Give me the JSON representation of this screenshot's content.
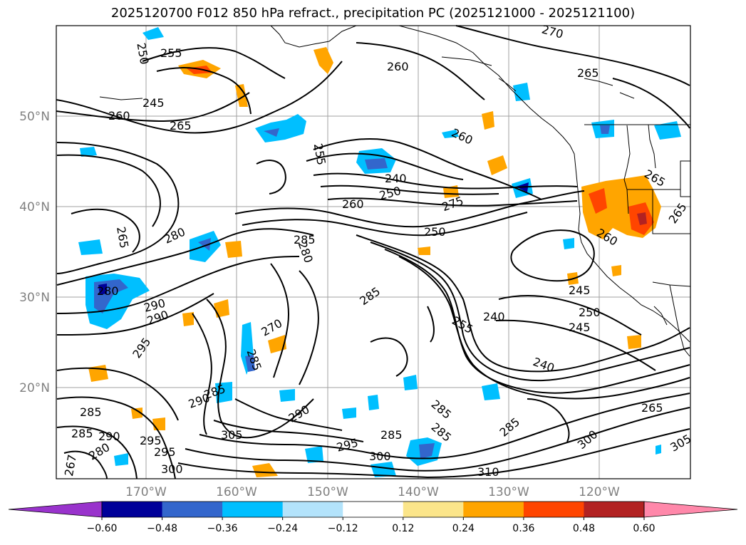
{
  "title": "2025120700 F012 850 hPa refract., precipitation PC (2025121000 - 2025121100)",
  "lat_labels": [
    "50°N",
    "40°N",
    "30°N",
    "20°N"
  ],
  "lon_labels": [
    "170°W",
    "160°W",
    "150°W",
    "140°W",
    "130°W",
    "120°W"
  ],
  "colorbar": {
    "colors": [
      "#9933cc",
      "#000099",
      "#3366cc",
      "#00bfff",
      "#b3e3fb",
      "#ffffff",
      "#fbe58a",
      "#ffa500",
      "#ff4500",
      "#b22222",
      "#ff88aa"
    ],
    "tick_labels": [
      "−0.60",
      "−0.48",
      "−0.36",
      "−0.24",
      "−0.12",
      "0.12",
      "0.24",
      "0.36",
      "0.48",
      "0.60"
    ]
  },
  "contour_labels": [
    "250",
    "255",
    "245",
    "260",
    "265",
    "260",
    "270",
    "265",
    "260",
    "255",
    "240",
    "250",
    "260",
    "275",
    "265",
    "265",
    "280",
    "285",
    "280",
    "265",
    "250",
    "260",
    "245",
    "250",
    "245",
    "290",
    "285",
    "240",
    "255",
    "295",
    "290",
    "270",
    "285",
    "290",
    "240",
    "285",
    "285",
    "290",
    "280",
    "295",
    "295",
    "300",
    "285",
    "290",
    "295",
    "285",
    "300",
    "310",
    "285",
    "285",
    "265",
    "305",
    "300",
    "305",
    "267",
    "285",
    "280"
  ]
}
